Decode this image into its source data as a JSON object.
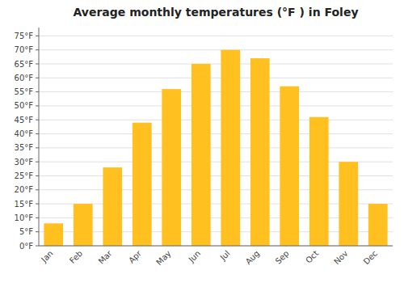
{
  "chart_data": {
    "type": "bar",
    "title": "Average monthly temperatures (°F ) in Foley",
    "categories": [
      "Jan",
      "Feb",
      "Mar",
      "Apr",
      "May",
      "Jun",
      "Jul",
      "Aug",
      "Sep",
      "Oct",
      "Nov",
      "Dec"
    ],
    "values": [
      8,
      15,
      28,
      44,
      56,
      65,
      70,
      67,
      57,
      46,
      30,
      15
    ],
    "color": "#FFC020",
    "ylim": [
      0,
      78
    ],
    "yticks": [
      {
        "value": 0,
        "label": "0°F"
      },
      {
        "value": 5,
        "label": "5°F"
      },
      {
        "value": 10,
        "label": "10°F"
      },
      {
        "value": 15,
        "label": "15°F"
      },
      {
        "value": 20,
        "label": "20°F"
      },
      {
        "value": 25,
        "label": "25°F"
      },
      {
        "value": 30,
        "label": "30°F"
      },
      {
        "value": 35,
        "label": "35°F"
      },
      {
        "value": 40,
        "label": "40°F"
      },
      {
        "value": 45,
        "label": "45°F"
      },
      {
        "value": 50,
        "label": "50°F"
      },
      {
        "value": 55,
        "label": "55°F"
      },
      {
        "value": 60,
        "label": "60°F"
      },
      {
        "value": 65,
        "label": "65°F"
      },
      {
        "value": 70,
        "label": "70°F"
      },
      {
        "value": 75,
        "label": "75°F"
      }
    ],
    "grid": true
  }
}
